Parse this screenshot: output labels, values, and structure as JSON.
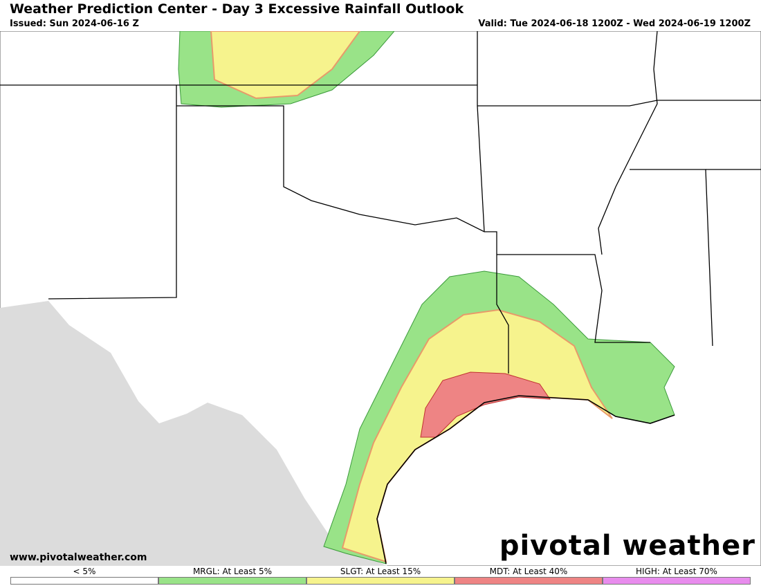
{
  "header": {
    "title": "Weather Prediction Center - Day 3 Excessive Rainfall Outlook",
    "issued": "Issued: Sun 2024-06-16 Z",
    "valid": "Valid: Tue 2024-06-18 1200Z - Wed 2024-06-19 1200Z"
  },
  "footer": {
    "website": "www.pivotalweather.com",
    "logo": "pivotal weather"
  },
  "legend": {
    "items": [
      {
        "label": "< 5%",
        "color": "#ffffff"
      },
      {
        "label": "MRGL: At Least 5%",
        "color": "#99e388"
      },
      {
        "label": "SLGT: At Least 15%",
        "color": "#f6f38d"
      },
      {
        "label": "MDT: At Least 40%",
        "color": "#ee8484"
      },
      {
        "label": "HIGH: At Least 70%",
        "color": "#e88ced"
      }
    ]
  }
}
